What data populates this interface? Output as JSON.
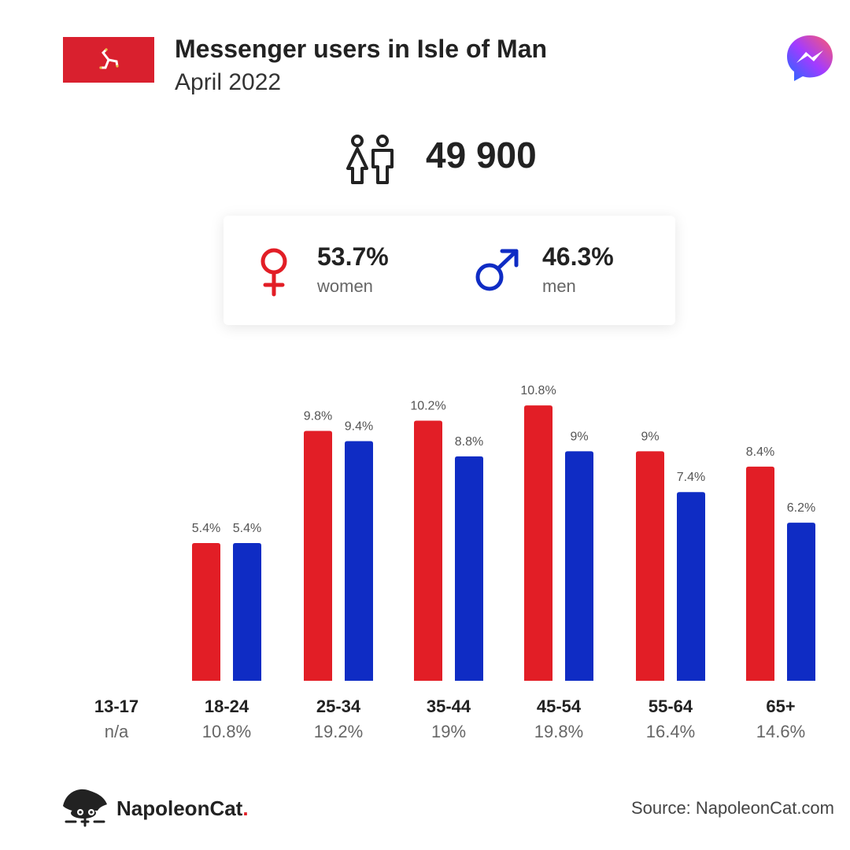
{
  "header": {
    "title": "Messenger users in Isle of Man",
    "subtitle": "April 2022",
    "flag_icon": "isle-of-man-flag-icon",
    "brand_icon": "messenger-logo-icon"
  },
  "total": {
    "icon": "people-icon",
    "value": "49 900"
  },
  "gender": {
    "women": {
      "percent": "53.7%",
      "label": "women",
      "icon": "female-symbol-icon",
      "color": "#e21e26"
    },
    "men": {
      "percent": "46.3%",
      "label": "men",
      "icon": "male-symbol-icon",
      "color": "#0f2cc4"
    }
  },
  "chart_data": {
    "type": "bar",
    "categories": [
      "13-17",
      "18-24",
      "25-34",
      "35-44",
      "45-54",
      "55-64",
      "65+"
    ],
    "category_totals": [
      "n/a",
      "10.8%",
      "19.2%",
      "19%",
      "19.8%",
      "16.4%",
      "14.6%"
    ],
    "series": [
      {
        "color": "#e21e26",
        "values": [
          null,
          5.4,
          9.8,
          10.2,
          10.8,
          9,
          8.4
        ],
        "labels": [
          "",
          "5.4%",
          "9.8%",
          "10.2%",
          "10.8%",
          "9%",
          "8.4%"
        ]
      },
      {
        "color": "#0f2cc4",
        "values": [
          null,
          5.4,
          9.4,
          8.8,
          9,
          7.4,
          6.2
        ],
        "labels": [
          "",
          "5.4%",
          "9.4%",
          "8.8%",
          "9%",
          "7.4%",
          "6.2%"
        ]
      }
    ],
    "title": "",
    "xlabel": "",
    "ylabel": "",
    "ylim": [
      0,
      10.8
    ],
    "grid": false
  },
  "footer": {
    "brand_name": "NapoleonCat",
    "brand_dot": ".",
    "brand_icon": "napoleoncat-logo-icon",
    "source": "Source: NapoleonCat.com"
  }
}
